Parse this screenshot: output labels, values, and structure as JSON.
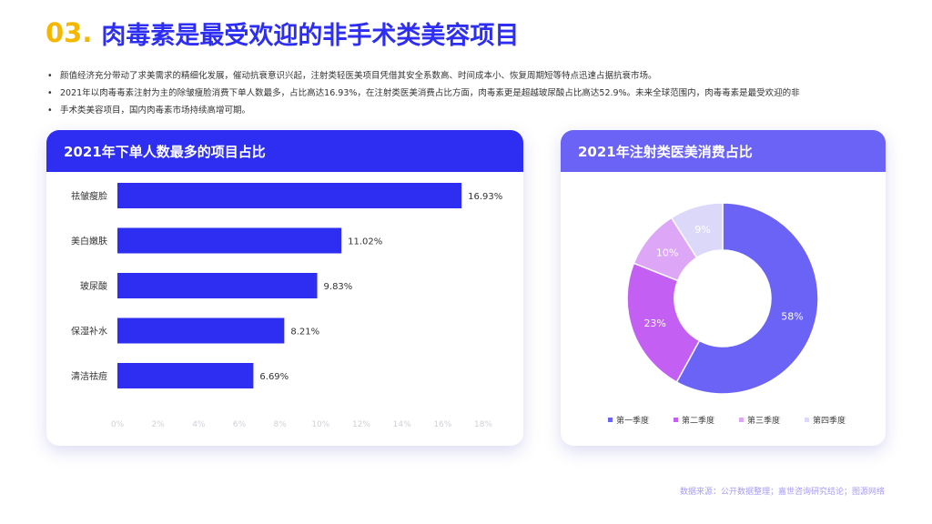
{
  "header": {
    "number": "03.",
    "title": "肉毒素是最受欢迎的非手术类美容项目"
  },
  "bullets": [
    "颜值经济充分带动了求美需求的精细化发展，催动抗衰意识兴起，注射类轻医美项目凭借其安全系数高、时间成本小、恢复周期短等特点迅速占据抗衰市场。",
    "2021年以肉毒毒素注射为主的除皱瘦脸消费下单人数最多，占比高达16.93%，在注射类医美消费占比方面，肉毒素更是超越玻尿酸占比高达52.9%。未来全球范围内，肉毒毒素是最受欢迎的非",
    "手术类美容项目，国内肉毒素市场持续高增可期。"
  ],
  "bar_card": {
    "title": "2021年下单人数最多的项目占比"
  },
  "pie_card": {
    "title": "2021年注射类医美消费占比"
  },
  "footer": {
    "source": "数据来源：公开数据整理；嘉世咨询研究结论；图源网络"
  },
  "colors": {
    "accent": "#2E2EF2",
    "number": "#F5B800",
    "axis_text": "#D0D0D8"
  },
  "chart_data": [
    {
      "type": "bar",
      "orientation": "horizontal",
      "title": "2021年下单人数最多的项目占比",
      "categories": [
        "祛皱瘦脸",
        "美白嫩肤",
        "玻尿酸",
        "保湿补水",
        "清洁祛痘"
      ],
      "values": [
        16.93,
        11.02,
        9.83,
        8.21,
        6.69
      ],
      "value_labels": [
        "16.93%",
        "11.02%",
        "9.83%",
        "8.21%",
        "6.69%"
      ],
      "xlim": [
        0,
        18
      ],
      "xticks": [
        "0%",
        "2%",
        "4%",
        "6%",
        "8%",
        "10%",
        "12%",
        "14%",
        "16%",
        "18%"
      ],
      "color": "#2E2EF2",
      "grid": false
    },
    {
      "type": "pie",
      "donut": true,
      "title": "2021年注射类医美消费占比",
      "labels": [
        "第一季度",
        "第二季度",
        "第三季度",
        "第四季度"
      ],
      "values": [
        58,
        23,
        10,
        9
      ],
      "value_labels": [
        "58%",
        "23%",
        "10%",
        "9%"
      ],
      "colors": [
        "#6A63F6",
        "#C35FF3",
        "#DDA6F7",
        "#DCD8FA"
      ],
      "legend_position": "bottom"
    }
  ]
}
